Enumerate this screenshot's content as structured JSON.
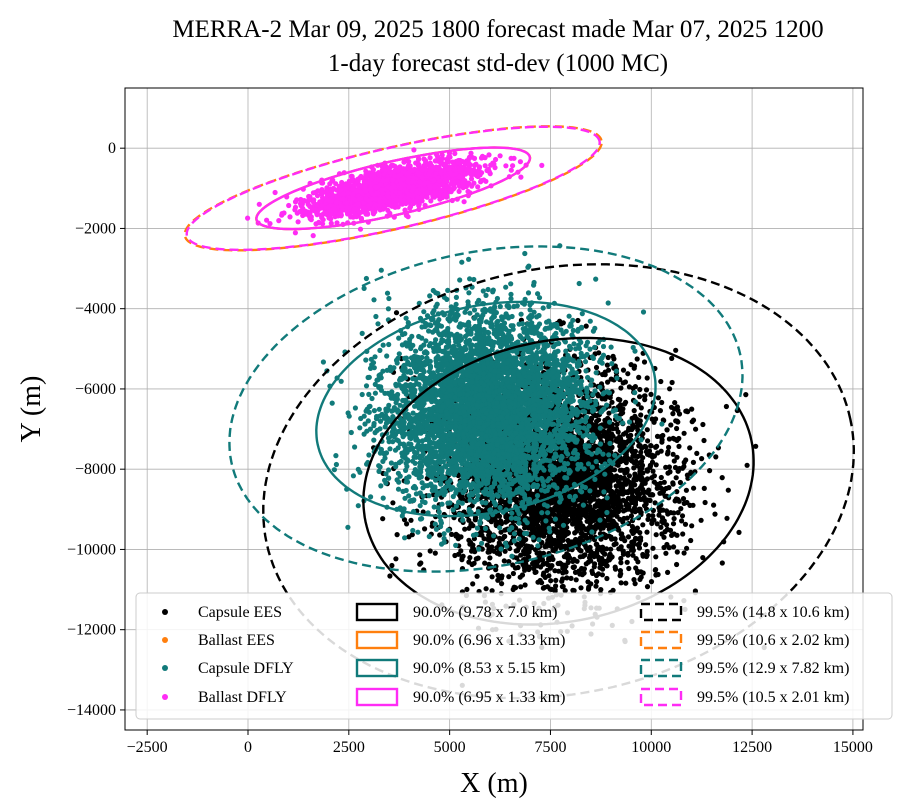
{
  "chart_data": {
    "type": "scatter",
    "title": "MERRA-2 Mar 09, 2025 1800 forecast made Mar 07, 2025 1200",
    "subtitle": "1-day forecast std-dev (1000 MC)",
    "xlabel": "X (m)",
    "ylabel": "Y (m)",
    "xlim": [
      -3050,
      15250
    ],
    "ylim": [
      -14500,
      1500
    ],
    "x_ticks": [
      -2500,
      0,
      2500,
      5000,
      7500,
      10000,
      12500,
      15000
    ],
    "x_tick_labels": [
      "−2500",
      "0",
      "2500",
      "5000",
      "7500",
      "10000",
      "12500",
      "15000"
    ],
    "y_ticks": [
      0,
      -2000,
      -4000,
      -6000,
      -8000,
      -10000,
      -12000,
      -14000
    ],
    "y_tick_labels": [
      "0",
      "−2000",
      "−4000",
      "−6000",
      "−8000",
      "−10000",
      "−12000",
      "−14000"
    ],
    "grid": true,
    "legend_position": "bottom",
    "series": [
      {
        "name": "Capsule EES",
        "color": "#000000",
        "n_points": 4000,
        "center": [
          7700,
          -8300
        ],
        "std": [
          1400,
          1300
        ],
        "angle_deg": 12
      },
      {
        "name": "Ballast EES",
        "color": "#ff7f0e",
        "n_points": 0,
        "center": [
          3600,
          -1000
        ],
        "std": [
          1050,
          230
        ],
        "angle_deg": 13
      },
      {
        "name": "Capsule DFLY",
        "color": "#117a7a",
        "n_points": 5000,
        "center": [
          5900,
          -6500
        ],
        "std": [
          1250,
          1150
        ],
        "angle_deg": 12
      },
      {
        "name": "Ballast DFLY",
        "color": "#ff2cf5",
        "n_points": 2000,
        "center": [
          3600,
          -1000
        ],
        "std": [
          1050,
          230
        ],
        "angle_deg": 13
      }
    ],
    "ellipses": [
      {
        "label": "90.0% (9.78 x 7.0 km)",
        "color": "#000000",
        "dashed": false,
        "cx": 7700,
        "cy": -8300,
        "rx": 4890,
        "ry": 3500,
        "angle_deg": 12
      },
      {
        "label": "90.0% (6.96 x 1.33 km)",
        "color": "#ff7f0e",
        "dashed": false,
        "cx": 3600,
        "cy": -1000,
        "rx": 3480,
        "ry": 665,
        "angle_deg": 13
      },
      {
        "label": "90.0% (8.53 x 5.15 km)",
        "color": "#117a7a",
        "dashed": false,
        "cx": 5900,
        "cy": -6500,
        "rx": 4265,
        "ry": 2575,
        "angle_deg": 12
      },
      {
        "label": "90.0% (6.95 x 1.33 km)",
        "color": "#ff2cf5",
        "dashed": false,
        "cx": 3600,
        "cy": -1000,
        "rx": 3475,
        "ry": 665,
        "angle_deg": 13
      },
      {
        "label": "99.5% (14.8 x 10.6 km)",
        "color": "#000000",
        "dashed": true,
        "cx": 7700,
        "cy": -8300,
        "rx": 7400,
        "ry": 5300,
        "angle_deg": 12
      },
      {
        "label": "99.5% (10.6 x 2.02 km)",
        "color": "#ff7f0e",
        "dashed": true,
        "cx": 3600,
        "cy": -1000,
        "rx": 5300,
        "ry": 1010,
        "angle_deg": 13
      },
      {
        "label": "99.5% (12.9 x 7.82 km)",
        "color": "#117a7a",
        "dashed": true,
        "cx": 5900,
        "cy": -6500,
        "rx": 6450,
        "ry": 3910,
        "angle_deg": 12
      },
      {
        "label": "99.5% (10.5 x 2.01 km)",
        "color": "#ff2cf5",
        "dashed": true,
        "cx": 3600,
        "cy": -1000,
        "rx": 5250,
        "ry": 1005,
        "angle_deg": 13
      }
    ]
  }
}
